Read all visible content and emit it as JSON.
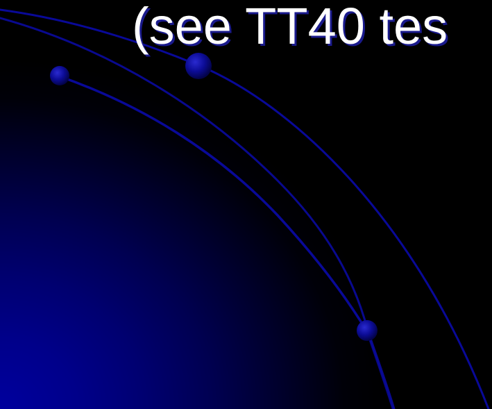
{
  "slide": {
    "title": "(see TT40 tes"
  },
  "colors": {
    "background": "#000000",
    "gradient_corner": "#00009e",
    "arc_stroke": "#0a0aa8",
    "dot_fill": "#0c0c96",
    "title_text": "#ffffff",
    "title_shadow": "#1a1a8c"
  }
}
